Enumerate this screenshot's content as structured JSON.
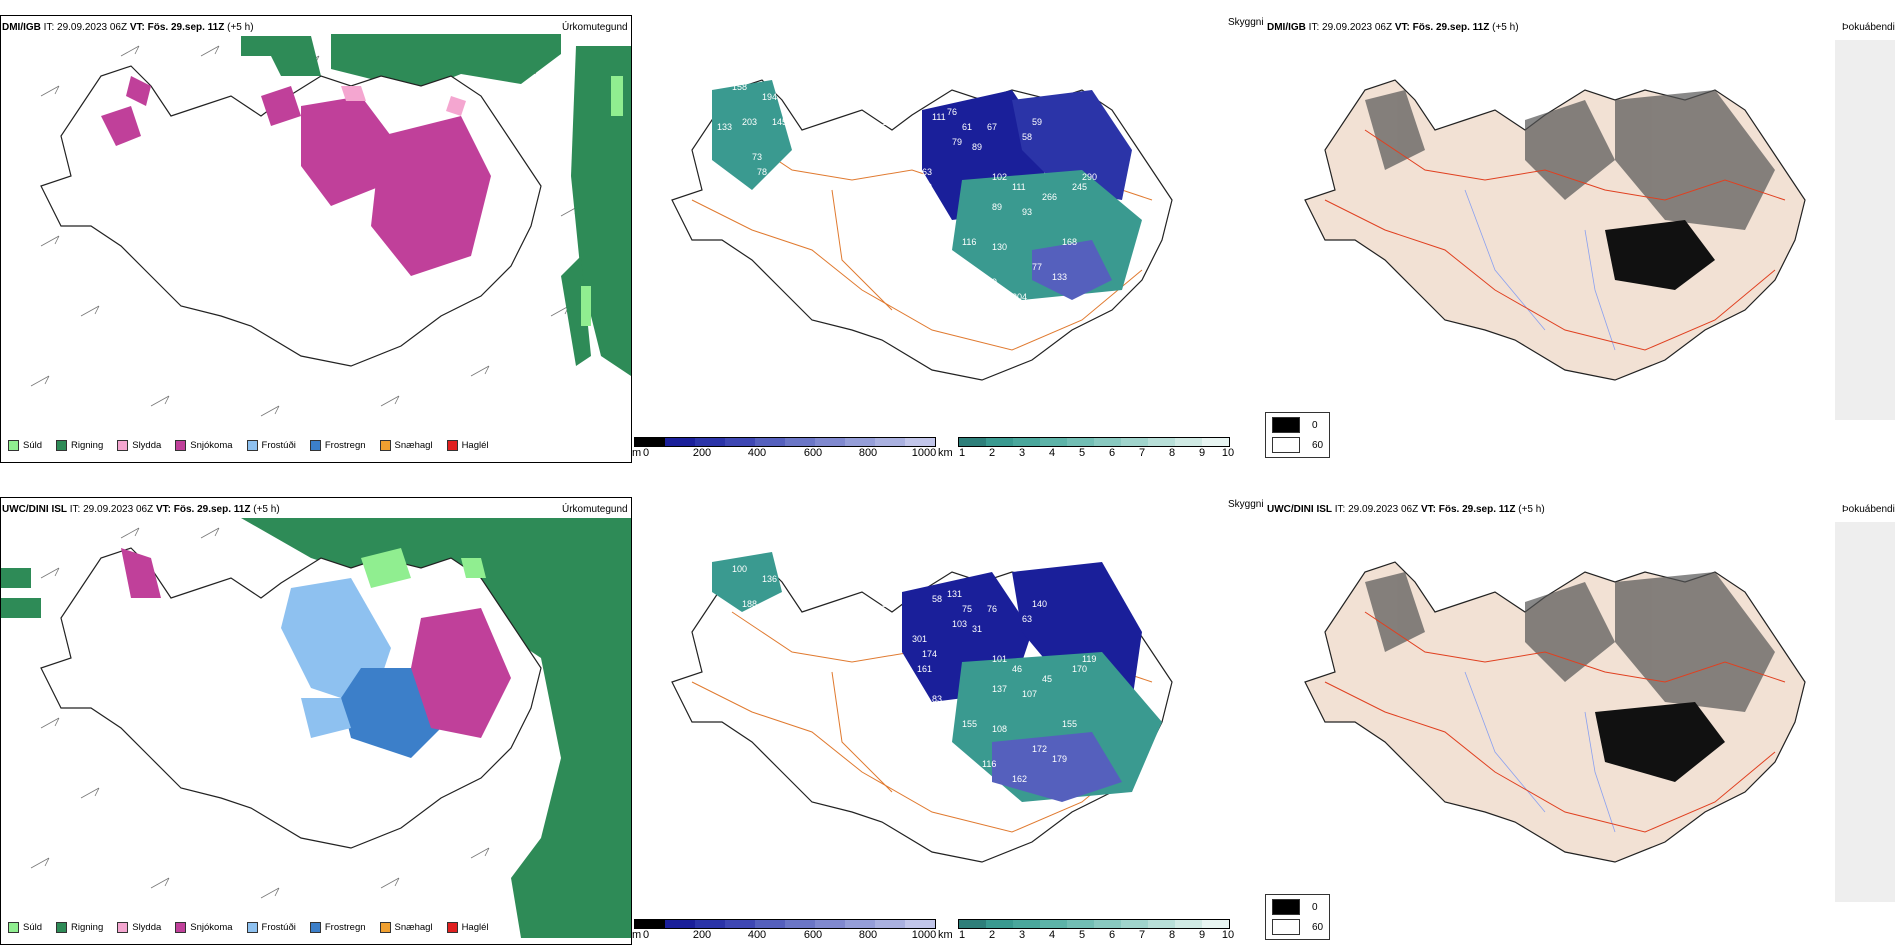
{
  "colors": {
    "rain": "#2e8b57",
    "drizzle": "#90ee90",
    "sleet": "#f4a6d0",
    "snow": "#c0409a",
    "freezing_drizzle": "#8ec1f0",
    "freezing_rain": "#3c7fc9",
    "graupel": "#f0a030",
    "hail": "#e02020",
    "cloud_deep": "#1a1f9a",
    "cloud_teal": "#3a9a90",
    "roads": "#e07a30",
    "land_fog": "#f2e1d4",
    "rivers": "#8aa0f0",
    "fog_roads": "#e04020"
  },
  "rows": [
    {
      "precip": {
        "model": "DMI/IGB",
        "it_label": "IT:",
        "it_value": "29.09.2023 06Z",
        "vt_label": "VT:",
        "vt_value": "Fös. 29.sep. 11Z",
        "offset": "(+5 h)",
        "title": "Úrkomutegund"
      },
      "cloud": {
        "title": "Skyggni",
        "labels": [
          "158",
          "194",
          "203",
          "145",
          "133",
          "73",
          "78",
          "160",
          "35",
          "111",
          "61",
          "67",
          "58",
          "59",
          "89",
          "79",
          "76",
          "91",
          "63",
          "109",
          "102",
          "111",
          "266",
          "245",
          "290",
          "89",
          "93",
          "233",
          "232",
          "116",
          "130",
          "77",
          "133",
          "168",
          "149",
          "204",
          "43"
        ]
      },
      "fog": {
        "model": "DMI/IGB",
        "it_label": "IT:",
        "it_value": "29.09.2023 06Z",
        "vt_label": "VT:",
        "vt_value": "Fös. 29.sep. 11Z",
        "offset": "(+5 h)",
        "title": "Þokuábendi"
      }
    },
    {
      "precip": {
        "model": "UWC/DINI ISL",
        "it_label": "IT:",
        "it_value": "29.09.2023 06Z",
        "vt_label": "VT:",
        "vt_value": "Fös. 29.sep. 11Z",
        "offset": "(+5 h)",
        "title": "Úrkomutegund"
      },
      "cloud": {
        "title": "Skyggni",
        "labels": [
          "100",
          "136",
          "188",
          "73",
          "82",
          "60",
          "69",
          "51",
          "56",
          "58",
          "75",
          "76",
          "63",
          "140",
          "31",
          "103",
          "131",
          "301",
          "174",
          "161",
          "101",
          "46",
          "45",
          "170",
          "119",
          "137",
          "107",
          "83",
          "91",
          "155",
          "108",
          "172",
          "179",
          "155",
          "116",
          "162",
          "53"
        ]
      },
      "fog": {
        "model": "UWC/DINI ISL",
        "it_label": "IT:",
        "it_value": "29.09.2023 06Z",
        "vt_label": "VT:",
        "vt_value": "Fös. 29.sep. 11Z",
        "offset": "(+5 h)",
        "title": "Þokuábendi"
      }
    }
  ],
  "precip_legend": [
    {
      "label": "Súld",
      "color": "#90ee90"
    },
    {
      "label": "Rigning",
      "color": "#2e8b57"
    },
    {
      "label": "Slydda",
      "color": "#f4a6d0"
    },
    {
      "label": "Snjókoma",
      "color": "#c0409a"
    },
    {
      "label": "Frostúði",
      "color": "#8ec1f0"
    },
    {
      "label": "Frostregn",
      "color": "#3c7fc9"
    },
    {
      "label": "Snæhagl",
      "color": "#f0a030"
    },
    {
      "label": "Haglél",
      "color": "#e02020"
    }
  ],
  "ceiling_bar": {
    "unit": "m",
    "ticks": [
      "0",
      "200",
      "400",
      "600",
      "800",
      "1000"
    ],
    "colors": [
      "#000000",
      "#1a1f9a",
      "#2b34a8",
      "#3e47b3",
      "#5560bd",
      "#6b76c6",
      "#8089cf",
      "#959ed8",
      "#aab1e0",
      "#c2c6ea"
    ]
  },
  "vis_bar": {
    "unit": "km",
    "ticks": [
      "1",
      "2",
      "3",
      "4",
      "5",
      "6",
      "7",
      "8",
      "9",
      "10"
    ],
    "colors": [
      "#2e7f7a",
      "#3a9a90",
      "#4aa79c",
      "#5db3a8",
      "#72beb4",
      "#89c9c0",
      "#a0d4cc",
      "#b8dfd8",
      "#d0eae4",
      "#e8f5f2"
    ]
  },
  "fog_legend": [
    {
      "label": "0",
      "color": "#000000"
    },
    {
      "label": "60",
      "color": "#ffffff"
    }
  ]
}
